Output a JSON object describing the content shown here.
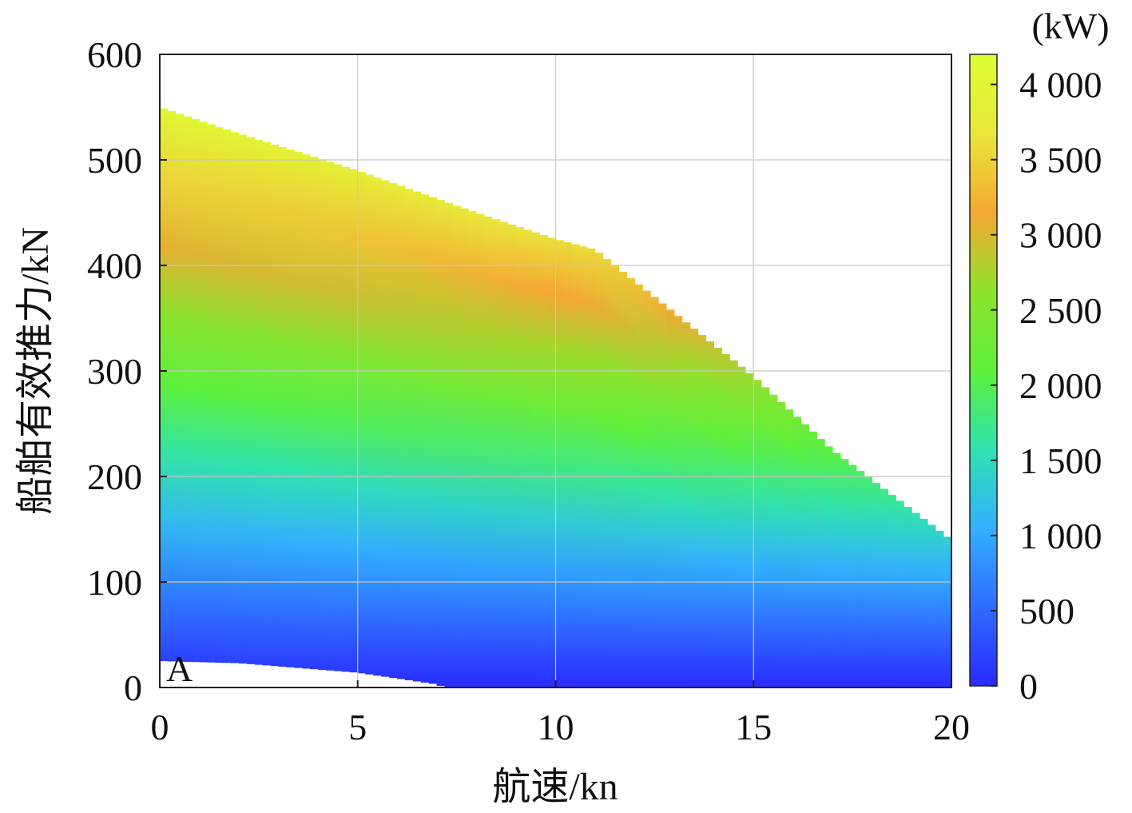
{
  "chart_data": {
    "type": "heatmap",
    "title": "",
    "xlabel": "航速/kn",
    "ylabel": "船舶有效推力/kN",
    "xlim": [
      0,
      20
    ],
    "ylim": [
      0,
      600
    ],
    "x_ticks": [
      0,
      5,
      10,
      15,
      20
    ],
    "x_tick_labels": [
      "0",
      "5",
      "10",
      "15",
      "20"
    ],
    "y_ticks": [
      0,
      100,
      200,
      300,
      400,
      500,
      600
    ],
    "y_tick_labels": [
      "0",
      "100",
      "200",
      "300",
      "400",
      "500",
      "600"
    ],
    "grid": true,
    "panel_label": "A",
    "colorbar": {
      "unit": "(kW)",
      "range": [
        0,
        4200
      ],
      "ticks": [
        0,
        500,
        1000,
        1500,
        2000,
        2500,
        3000,
        3500,
        4000
      ],
      "tick_labels": [
        "0",
        "500",
        "1 000",
        "1 500",
        "2 000",
        "2 500",
        "3 000",
        "3 500",
        "4 000"
      ],
      "colormap": [
        "#2a2bff",
        "#2f6cff",
        "#33b0ff",
        "#2fe3b0",
        "#5df03a",
        "#8fe22c",
        "#f5a733",
        "#e9e73a",
        "#dcff30"
      ]
    },
    "upper_boundary": {
      "x": [
        0,
        2,
        5,
        8,
        10,
        11,
        15,
        17,
        20
      ],
      "y": [
        550,
        525,
        490,
        450,
        425,
        415,
        295,
        225,
        140
      ]
    },
    "lower_boundary": {
      "x": [
        0,
        2,
        5,
        7,
        7.2
      ],
      "y": [
        25,
        23,
        14,
        3,
        0
      ]
    },
    "surface_approx": "power ≈ thrust × (1 + 0.016 × speed) × 7.3"
  }
}
